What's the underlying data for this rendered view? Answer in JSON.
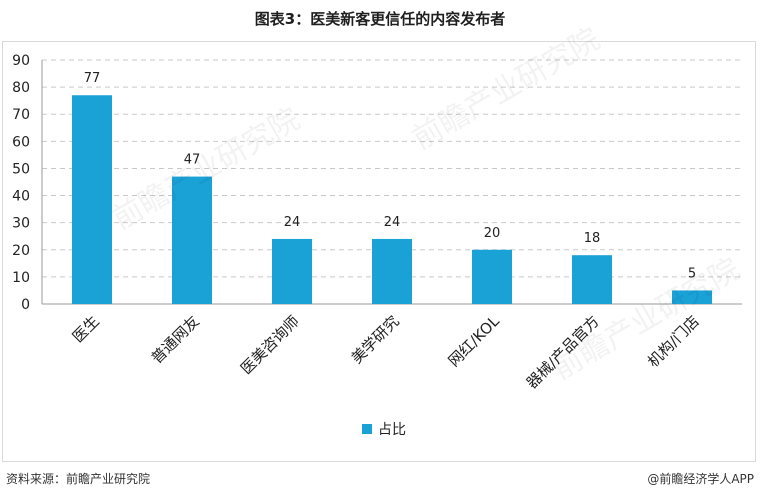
{
  "title": "图表3：医美新客更信任的内容发布者",
  "footer": {
    "source": "资料来源：前瞻产业研究院",
    "brand": "@前瞻经济学人APP"
  },
  "watermark": "前瞻产业研究院",
  "colors": {
    "bar": "#1aa1d6",
    "grid": "#c9c9c9",
    "axis": "#9a9a9a"
  },
  "chart_data": {
    "type": "bar",
    "categories": [
      "医生",
      "普通网友",
      "医美咨询师",
      "美学研究",
      "网红/KOL",
      "器械/产品官方",
      "机构/门店"
    ],
    "series": [
      {
        "name": "占比",
        "values": [
          77,
          47,
          24,
          24,
          20,
          18,
          5
        ]
      }
    ],
    "ylim": [
      0,
      90
    ],
    "yticks": [
      0,
      10,
      20,
      30,
      40,
      50,
      60,
      70,
      80,
      90
    ],
    "grid": true,
    "legend": "bottom-center",
    "data_labels": true
  }
}
